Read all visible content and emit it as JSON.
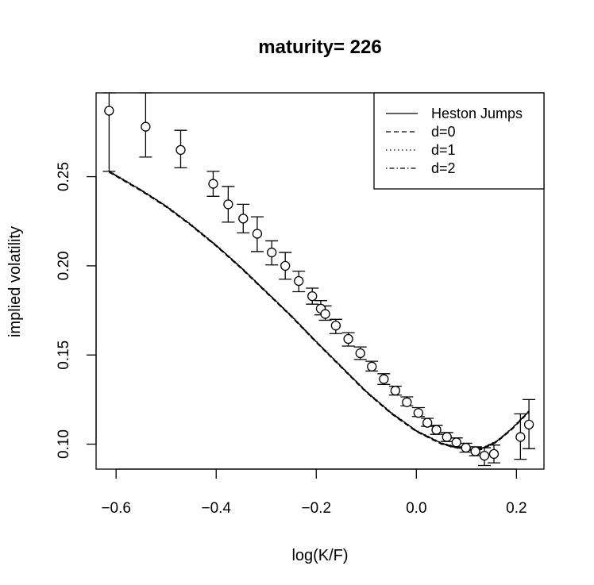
{
  "chart_data": {
    "type": "scatter",
    "title": "maturity= 226",
    "xlabel": "log(K/F)",
    "ylabel": "implied volatility",
    "xlim": [
      -0.64,
      0.255
    ],
    "ylim": [
      0.086,
      0.297
    ],
    "x_ticks": [
      -0.6,
      -0.4,
      -0.2,
      0.0,
      0.2
    ],
    "x_tick_labels": [
      "−0.6",
      "−0.4",
      "−0.2",
      "0.0",
      "0.2"
    ],
    "y_ticks": [
      0.1,
      0.15,
      0.2,
      0.25
    ],
    "y_tick_labels": [
      "0.10",
      "0.15",
      "0.20",
      "0.25"
    ],
    "grid": false,
    "legend": {
      "placement": "top-right",
      "entries": [
        {
          "label": "Heston Jumps",
          "dash": "solid"
        },
        {
          "label": "d=0",
          "dash": "dashed"
        },
        {
          "label": "d=1",
          "dash": "dotted"
        },
        {
          "label": "d=2",
          "dash": "dotdash"
        }
      ]
    },
    "points": [
      {
        "x": -0.614,
        "y": 0.287,
        "lo": 0.253,
        "hi": 0.297
      },
      {
        "x": -0.541,
        "y": 0.278,
        "lo": 0.261,
        "hi": 0.297
      },
      {
        "x": -0.471,
        "y": 0.265,
        "lo": 0.255,
        "hi": 0.276
      },
      {
        "x": -0.406,
        "y": 0.246,
        "lo": 0.239,
        "hi": 0.253
      },
      {
        "x": -0.376,
        "y": 0.2345,
        "lo": 0.2245,
        "hi": 0.2445
      },
      {
        "x": -0.346,
        "y": 0.2265,
        "lo": 0.2185,
        "hi": 0.2345
      },
      {
        "x": -0.318,
        "y": 0.218,
        "lo": 0.208,
        "hi": 0.2275
      },
      {
        "x": -0.289,
        "y": 0.2075,
        "lo": 0.2005,
        "hi": 0.214
      },
      {
        "x": -0.262,
        "y": 0.2,
        "lo": 0.1925,
        "hi": 0.2075
      },
      {
        "x": -0.235,
        "y": 0.1915,
        "lo": 0.1855,
        "hi": 0.197
      },
      {
        "x": -0.208,
        "y": 0.183,
        "lo": 0.1785,
        "hi": 0.1875
      },
      {
        "x": -0.191,
        "y": 0.176,
        "lo": 0.1725,
        "hi": 0.1805
      },
      {
        "x": -0.182,
        "y": 0.173,
        "lo": 0.1695,
        "hi": 0.1775
      },
      {
        "x": -0.161,
        "y": 0.1665,
        "lo": 0.162,
        "hi": 0.17
      },
      {
        "x": -0.136,
        "y": 0.159,
        "lo": 0.155,
        "hi": 0.1625
      },
      {
        "x": -0.112,
        "y": 0.151,
        "lo": 0.1475,
        "hi": 0.1545
      },
      {
        "x": -0.089,
        "y": 0.1435,
        "lo": 0.141,
        "hi": 0.1465
      },
      {
        "x": -0.065,
        "y": 0.1365,
        "lo": 0.1335,
        "hi": 0.1395
      },
      {
        "x": -0.042,
        "y": 0.13,
        "lo": 0.1275,
        "hi": 0.1325
      },
      {
        "x": -0.019,
        "y": 0.1235,
        "lo": 0.1215,
        "hi": 0.1265
      },
      {
        "x": 0.004,
        "y": 0.1175,
        "lo": 0.1155,
        "hi": 0.1205
      },
      {
        "x": 0.022,
        "y": 0.112,
        "lo": 0.11,
        "hi": 0.1145
      },
      {
        "x": 0.04,
        "y": 0.108,
        "lo": 0.1055,
        "hi": 0.1105
      },
      {
        "x": 0.061,
        "y": 0.104,
        "lo": 0.1015,
        "hi": 0.1065
      },
      {
        "x": 0.08,
        "y": 0.101,
        "lo": 0.0985,
        "hi": 0.1035
      },
      {
        "x": 0.099,
        "y": 0.098,
        "lo": 0.0955,
        "hi": 0.1005
      },
      {
        "x": 0.118,
        "y": 0.096,
        "lo": 0.0935,
        "hi": 0.0985
      },
      {
        "x": 0.136,
        "y": 0.0935,
        "lo": 0.088,
        "hi": 0.098
      },
      {
        "x": 0.155,
        "y": 0.0945,
        "lo": 0.0895,
        "hi": 0.0995
      },
      {
        "x": 0.208,
        "y": 0.104,
        "lo": 0.0915,
        "hi": 0.117
      },
      {
        "x": 0.225,
        "y": 0.111,
        "lo": 0.0975,
        "hi": 0.125
      }
    ],
    "series": [
      {
        "name": "Heston Jumps",
        "dash": "solid",
        "x": [
          -0.614,
          -0.55,
          -0.5,
          -0.45,
          -0.4,
          -0.35,
          -0.3,
          -0.25,
          -0.2,
          -0.15,
          -0.1,
          -0.05,
          0.0,
          0.05,
          0.1,
          0.13,
          0.16,
          0.19,
          0.225
        ],
        "y": [
          0.253,
          0.2425,
          0.2335,
          0.223,
          0.2115,
          0.199,
          0.1855,
          0.172,
          0.1575,
          0.1435,
          0.1295,
          0.1175,
          0.1075,
          0.1005,
          0.097,
          0.0975,
          0.1015,
          0.1085,
          0.1185
        ]
      },
      {
        "name": "d=0",
        "dash": "dashed",
        "x": [
          -0.614,
          -0.55,
          -0.5,
          -0.45,
          -0.4,
          -0.35,
          -0.3,
          -0.25,
          -0.2,
          -0.15,
          -0.1,
          -0.05,
          0.0,
          0.05,
          0.1,
          0.13,
          0.16,
          0.19,
          0.225
        ],
        "y": [
          0.2525,
          0.242,
          0.233,
          0.2225,
          0.211,
          0.1985,
          0.185,
          0.1715,
          0.157,
          0.143,
          0.129,
          0.117,
          0.107,
          0.1,
          0.0965,
          0.097,
          0.101,
          0.108,
          0.118
        ]
      },
      {
        "name": "d=1",
        "dash": "dotted",
        "x": [
          -0.614,
          -0.55,
          -0.5,
          -0.45,
          -0.4,
          -0.35,
          -0.3,
          -0.25,
          -0.2,
          -0.15,
          -0.1,
          -0.05,
          0.0,
          0.05,
          0.1,
          0.13,
          0.16,
          0.19,
          0.225
        ],
        "y": [
          0.2532,
          0.2427,
          0.2337,
          0.2232,
          0.2117,
          0.1992,
          0.1857,
          0.1722,
          0.1577,
          0.1437,
          0.1297,
          0.1177,
          0.1077,
          0.1007,
          0.0972,
          0.0977,
          0.1017,
          0.1087,
          0.1187
        ]
      },
      {
        "name": "d=2",
        "dash": "dotdash",
        "x": [
          -0.614,
          -0.55,
          -0.5,
          -0.45,
          -0.4,
          -0.35,
          -0.3,
          -0.25,
          -0.2,
          -0.15,
          -0.1,
          -0.05,
          0.0,
          0.05,
          0.1,
          0.13,
          0.16,
          0.19,
          0.225
        ],
        "y": [
          0.2528,
          0.2423,
          0.2333,
          0.2228,
          0.2113,
          0.1988,
          0.1853,
          0.1718,
          0.1573,
          0.1433,
          0.1293,
          0.1173,
          0.1073,
          0.1003,
          0.0968,
          0.0973,
          0.1013,
          0.1083,
          0.1183
        ]
      }
    ]
  }
}
